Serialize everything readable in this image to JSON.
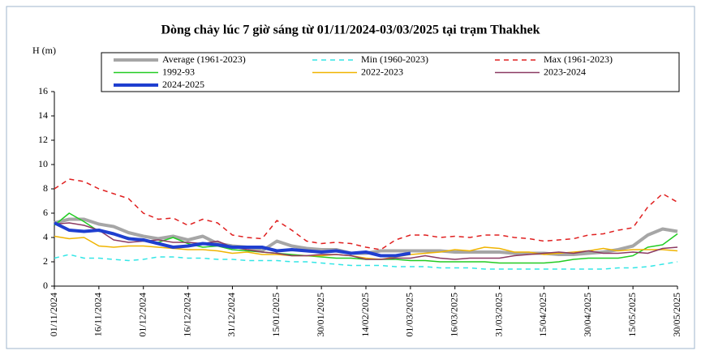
{
  "chart_data": {
    "type": "line",
    "title": "Dòng chảy lúc 7 giờ sáng từ 01/11/2024-03/03/2025 tại trạm Thakhek",
    "y_label": "H (m)",
    "x": [
      "01/11/2024",
      "06/11/2024",
      "11/11/2024",
      "16/11/2024",
      "21/11/2024",
      "26/11/2024",
      "01/12/2024",
      "06/12/2024",
      "11/12/2024",
      "16/12/2024",
      "21/12/2024",
      "26/12/2024",
      "31/12/2024",
      "05/01/2025",
      "10/01/2025",
      "15/01/2025",
      "20/01/2025",
      "25/01/2025",
      "30/01/2025",
      "04/02/2025",
      "09/02/2025",
      "14/02/2025",
      "19/02/2025",
      "24/02/2025",
      "01/03/2025",
      "06/03/2025",
      "11/03/2025",
      "16/03/2025",
      "21/03/2025",
      "26/03/2025",
      "31/03/2025",
      "05/04/2025",
      "10/04/2025",
      "15/04/2025",
      "20/04/2025",
      "25/04/2025",
      "30/04/2025",
      "05/05/2025",
      "10/05/2025",
      "15/05/2025",
      "20/05/2025",
      "25/05/2025",
      "30/05/2025"
    ],
    "xlim": [
      "01/11/2024",
      "30/05/2025"
    ],
    "xticks": [
      "01/11/2024",
      "16/11/2024",
      "01/12/2024",
      "16/12/2024",
      "31/12/2024",
      "15/01/2025",
      "30/01/2025",
      "14/02/2025",
      "01/03/2025",
      "16/03/2025",
      "31/03/2025",
      "15/04/2025",
      "30/04/2025",
      "15/05/2025",
      "30/05/2025"
    ],
    "ylim": [
      0,
      16
    ],
    "yticks": [
      0,
      2,
      4,
      6,
      8,
      10,
      12,
      14,
      16
    ],
    "grid": false,
    "series": [
      {
        "name": "Average (1961-2023)",
        "color": "#a6a6a6",
        "linewidth": 4,
        "dashed": false,
        "values": [
          5.2,
          5.5,
          5.5,
          5.1,
          4.9,
          4.4,
          4.1,
          3.9,
          4.1,
          3.8,
          4.1,
          3.5,
          3.3,
          3.2,
          2.9,
          3.7,
          3.3,
          3.1,
          3.0,
          3.0,
          2.7,
          2.7,
          2.9,
          2.9,
          2.9,
          2.9,
          2.9,
          2.8,
          2.8,
          2.8,
          2.8,
          2.7,
          2.7,
          2.7,
          2.6,
          2.6,
          2.7,
          2.8,
          3.0,
          3.3,
          4.2,
          4.7,
          4.5
        ]
      },
      {
        "name": "Min (1960-2023)",
        "color": "#33e6e6",
        "linewidth": 1.5,
        "dashed": true,
        "values": [
          2.3,
          2.6,
          2.3,
          2.3,
          2.2,
          2.1,
          2.2,
          2.4,
          2.4,
          2.3,
          2.3,
          2.2,
          2.2,
          2.1,
          2.1,
          2.1,
          2.0,
          2.0,
          1.9,
          1.8,
          1.7,
          1.7,
          1.7,
          1.6,
          1.6,
          1.6,
          1.5,
          1.5,
          1.5,
          1.4,
          1.4,
          1.4,
          1.4,
          1.4,
          1.4,
          1.4,
          1.4,
          1.4,
          1.5,
          1.5,
          1.6,
          1.8,
          2.0
        ]
      },
      {
        "name": "Max (1961-2023)",
        "color": "#e02020",
        "linewidth": 1.5,
        "dashed": true,
        "values": [
          8.0,
          8.8,
          8.6,
          8.0,
          7.6,
          7.2,
          6.0,
          5.5,
          5.6,
          5.0,
          5.5,
          5.2,
          4.2,
          4.0,
          3.9,
          5.4,
          4.6,
          3.7,
          3.5,
          3.6,
          3.5,
          3.2,
          3.0,
          3.8,
          4.2,
          4.2,
          4.0,
          4.1,
          4.0,
          4.2,
          4.2,
          4.0,
          3.9,
          3.7,
          3.8,
          3.9,
          4.2,
          4.3,
          4.6,
          4.8,
          6.5,
          7.6,
          6.9
        ]
      },
      {
        "name": "1992-93",
        "color": "#22cc22",
        "linewidth": 1.5,
        "dashed": false,
        "values": [
          5.0,
          6.0,
          5.3,
          4.5,
          4.3,
          4.0,
          3.7,
          3.6,
          4.0,
          3.5,
          3.2,
          3.3,
          3.0,
          2.9,
          2.8,
          2.7,
          2.6,
          2.5,
          2.4,
          2.3,
          2.3,
          2.2,
          2.2,
          2.2,
          2.1,
          2.1,
          2.0,
          2.0,
          2.0,
          2.0,
          1.9,
          1.9,
          1.9,
          1.9,
          2.0,
          2.2,
          2.3,
          2.3,
          2.3,
          2.5,
          3.2,
          3.4,
          4.3
        ]
      },
      {
        "name": "2022-2023",
        "color": "#f0b400",
        "linewidth": 1.5,
        "dashed": false,
        "values": [
          4.1,
          3.9,
          4.0,
          3.3,
          3.2,
          3.3,
          3.3,
          3.2,
          3.1,
          3.0,
          3.0,
          2.9,
          2.7,
          2.8,
          2.6,
          2.6,
          2.5,
          2.5,
          2.5,
          2.6,
          2.5,
          2.3,
          2.2,
          2.4,
          2.6,
          2.7,
          2.8,
          3.0,
          2.9,
          3.2,
          3.1,
          2.8,
          2.8,
          2.6,
          2.7,
          2.8,
          2.9,
          3.1,
          2.9,
          3.0,
          3.0,
          3.0,
          2.9
        ]
      },
      {
        "name": "2023-2024",
        "color": "#8b3a62",
        "linewidth": 1.5,
        "dashed": false,
        "values": [
          5.1,
          5.2,
          5.0,
          4.6,
          3.8,
          3.6,
          3.7,
          3.8,
          3.6,
          3.6,
          3.5,
          3.7,
          3.2,
          3.0,
          2.8,
          2.7,
          2.5,
          2.5,
          2.6,
          2.6,
          2.5,
          2.2,
          2.2,
          2.3,
          2.3,
          2.5,
          2.3,
          2.2,
          2.3,
          2.3,
          2.3,
          2.5,
          2.6,
          2.7,
          2.8,
          2.7,
          2.9,
          2.7,
          2.7,
          2.8,
          2.7,
          3.1,
          3.2
        ]
      },
      {
        "name": "2024-2025",
        "color": "#1f3fd0",
        "linewidth": 4,
        "dashed": false,
        "values": [
          5.2,
          4.6,
          4.5,
          4.6,
          4.3,
          3.9,
          3.8,
          3.5,
          3.2,
          3.3,
          3.5,
          3.4,
          3.2,
          3.2,
          3.2,
          2.9,
          3.0,
          2.9,
          2.8,
          2.9,
          2.7,
          2.8,
          2.5,
          2.5,
          2.7,
          null,
          null,
          null,
          null,
          null,
          null,
          null,
          null,
          null,
          null,
          null,
          null,
          null,
          null,
          null,
          null,
          null,
          null
        ]
      }
    ]
  }
}
